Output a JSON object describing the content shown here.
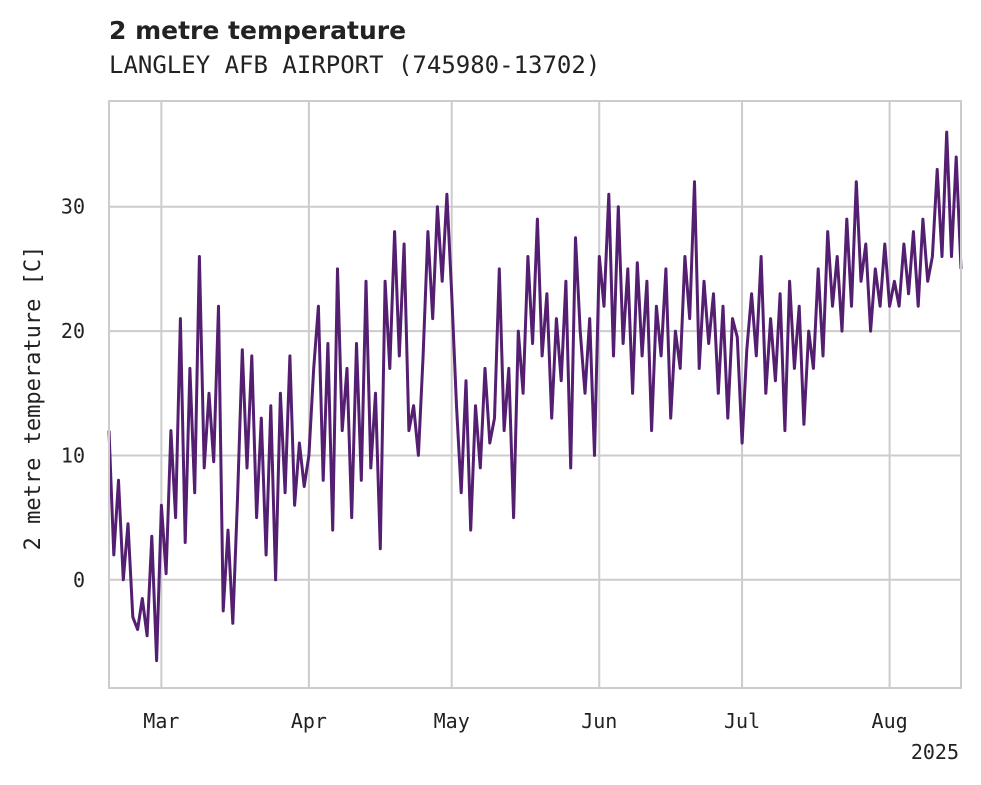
{
  "chart_data": {
    "type": "line",
    "title": "2 metre temperature",
    "subtitle": "LANGLEY AFB AIRPORT (745980-13702)",
    "xlabel": "",
    "ylabel": "2 metre temperature [C]",
    "year_label": "2025",
    "x_range": [
      "2025-02-18",
      "2025-08-16"
    ],
    "ylim": [
      -8.7,
      38.5
    ],
    "yticks": [
      0,
      10,
      20,
      30
    ],
    "xticks": [
      {
        "date": "2025-03-01",
        "label": "Mar"
      },
      {
        "date": "2025-04-01",
        "label": "Apr"
      },
      {
        "date": "2025-05-01",
        "label": "May"
      },
      {
        "date": "2025-06-01",
        "label": "Jun"
      },
      {
        "date": "2025-07-01",
        "label": "Jul"
      },
      {
        "date": "2025-08-01",
        "label": "Aug"
      }
    ],
    "grid": true,
    "series": [
      {
        "color": "#541f71",
        "points": [
          [
            "2025-02-18",
            12.0
          ],
          [
            "2025-02-19",
            2.0
          ],
          [
            "2025-02-20",
            8.0
          ],
          [
            "2025-02-21",
            0.0
          ],
          [
            "2025-02-22",
            4.5
          ],
          [
            "2025-02-23",
            -3.0
          ],
          [
            "2025-02-24",
            -4.0
          ],
          [
            "2025-02-25",
            -1.5
          ],
          [
            "2025-02-26",
            -4.5
          ],
          [
            "2025-02-27",
            3.5
          ],
          [
            "2025-02-28",
            -6.5
          ],
          [
            "2025-03-01",
            6.0
          ],
          [
            "2025-03-02",
            0.5
          ],
          [
            "2025-03-03",
            12.0
          ],
          [
            "2025-03-04",
            5.0
          ],
          [
            "2025-03-05",
            21.0
          ],
          [
            "2025-03-06",
            3.0
          ],
          [
            "2025-03-07",
            17.0
          ],
          [
            "2025-03-08",
            7.0
          ],
          [
            "2025-03-09",
            26.0
          ],
          [
            "2025-03-10",
            9.0
          ],
          [
            "2025-03-11",
            15.0
          ],
          [
            "2025-03-12",
            9.5
          ],
          [
            "2025-03-13",
            22.0
          ],
          [
            "2025-03-14",
            -2.5
          ],
          [
            "2025-03-15",
            4.0
          ],
          [
            "2025-03-16",
            -3.5
          ],
          [
            "2025-03-17",
            6.5
          ],
          [
            "2025-03-18",
            18.5
          ],
          [
            "2025-03-19",
            9.0
          ],
          [
            "2025-03-20",
            18.0
          ],
          [
            "2025-03-21",
            5.0
          ],
          [
            "2025-03-22",
            13.0
          ],
          [
            "2025-03-23",
            2.0
          ],
          [
            "2025-03-24",
            14.0
          ],
          [
            "2025-03-25",
            0.0
          ],
          [
            "2025-03-26",
            15.0
          ],
          [
            "2025-03-27",
            7.0
          ],
          [
            "2025-03-28",
            18.0
          ],
          [
            "2025-03-29",
            6.0
          ],
          [
            "2025-03-30",
            11.0
          ],
          [
            "2025-03-31",
            7.5
          ],
          [
            "2025-04-01",
            10.0
          ],
          [
            "2025-04-02",
            17.0
          ],
          [
            "2025-04-03",
            22.0
          ],
          [
            "2025-04-04",
            8.0
          ],
          [
            "2025-04-05",
            19.0
          ],
          [
            "2025-04-06",
            4.0
          ],
          [
            "2025-04-07",
            25.0
          ],
          [
            "2025-04-08",
            12.0
          ],
          [
            "2025-04-09",
            17.0
          ],
          [
            "2025-04-10",
            5.0
          ],
          [
            "2025-04-11",
            19.0
          ],
          [
            "2025-04-12",
            8.0
          ],
          [
            "2025-04-13",
            24.0
          ],
          [
            "2025-04-14",
            9.0
          ],
          [
            "2025-04-15",
            15.0
          ],
          [
            "2025-04-16",
            2.5
          ],
          [
            "2025-04-17",
            24.0
          ],
          [
            "2025-04-18",
            17.0
          ],
          [
            "2025-04-19",
            28.0
          ],
          [
            "2025-04-20",
            18.0
          ],
          [
            "2025-04-21",
            27.0
          ],
          [
            "2025-04-22",
            12.0
          ],
          [
            "2025-04-23",
            14.0
          ],
          [
            "2025-04-24",
            10.0
          ],
          [
            "2025-04-25",
            18.0
          ],
          [
            "2025-04-26",
            28.0
          ],
          [
            "2025-04-27",
            21.0
          ],
          [
            "2025-04-28",
            30.0
          ],
          [
            "2025-04-29",
            24.0
          ],
          [
            "2025-04-30",
            31.0
          ],
          [
            "2025-05-01",
            23.0
          ],
          [
            "2025-05-02",
            14.0
          ],
          [
            "2025-05-03",
            7.0
          ],
          [
            "2025-05-04",
            16.0
          ],
          [
            "2025-05-05",
            4.0
          ],
          [
            "2025-05-06",
            14.0
          ],
          [
            "2025-05-07",
            9.0
          ],
          [
            "2025-05-08",
            17.0
          ],
          [
            "2025-05-09",
            11.0
          ],
          [
            "2025-05-10",
            13.0
          ],
          [
            "2025-05-11",
            25.0
          ],
          [
            "2025-05-12",
            12.0
          ],
          [
            "2025-05-13",
            17.0
          ],
          [
            "2025-05-14",
            5.0
          ],
          [
            "2025-05-15",
            20.0
          ],
          [
            "2025-05-16",
            15.0
          ],
          [
            "2025-05-17",
            26.0
          ],
          [
            "2025-05-18",
            19.0
          ],
          [
            "2025-05-19",
            29.0
          ],
          [
            "2025-05-20",
            18.0
          ],
          [
            "2025-05-21",
            23.0
          ],
          [
            "2025-05-22",
            13.0
          ],
          [
            "2025-05-23",
            21.0
          ],
          [
            "2025-05-24",
            16.0
          ],
          [
            "2025-05-25",
            24.0
          ],
          [
            "2025-05-26",
            9.0
          ],
          [
            "2025-05-27",
            27.5
          ],
          [
            "2025-05-28",
            20.0
          ],
          [
            "2025-05-29",
            15.0
          ],
          [
            "2025-05-30",
            21.0
          ],
          [
            "2025-05-31",
            10.0
          ],
          [
            "2025-06-01",
            26.0
          ],
          [
            "2025-06-02",
            22.0
          ],
          [
            "2025-06-03",
            31.0
          ],
          [
            "2025-06-04",
            18.0
          ],
          [
            "2025-06-05",
            30.0
          ],
          [
            "2025-06-06",
            19.0
          ],
          [
            "2025-06-07",
            25.0
          ],
          [
            "2025-06-08",
            15.0
          ],
          [
            "2025-06-09",
            25.5
          ],
          [
            "2025-06-10",
            18.0
          ],
          [
            "2025-06-11",
            24.0
          ],
          [
            "2025-06-12",
            12.0
          ],
          [
            "2025-06-13",
            22.0
          ],
          [
            "2025-06-14",
            18.0
          ],
          [
            "2025-06-15",
            25.0
          ],
          [
            "2025-06-16",
            13.0
          ],
          [
            "2025-06-17",
            20.0
          ],
          [
            "2025-06-18",
            17.0
          ],
          [
            "2025-06-19",
            26.0
          ],
          [
            "2025-06-20",
            21.0
          ],
          [
            "2025-06-21",
            32.0
          ],
          [
            "2025-06-22",
            17.0
          ],
          [
            "2025-06-23",
            24.0
          ],
          [
            "2025-06-24",
            19.0
          ],
          [
            "2025-06-25",
            23.0
          ],
          [
            "2025-06-26",
            15.0
          ],
          [
            "2025-06-27",
            22.0
          ],
          [
            "2025-06-28",
            13.0
          ],
          [
            "2025-06-29",
            21.0
          ],
          [
            "2025-06-30",
            19.5
          ],
          [
            "2025-07-01",
            11.0
          ],
          [
            "2025-07-02",
            18.5
          ],
          [
            "2025-07-03",
            23.0
          ],
          [
            "2025-07-04",
            18.0
          ],
          [
            "2025-07-05",
            26.0
          ],
          [
            "2025-07-06",
            15.0
          ],
          [
            "2025-07-07",
            21.0
          ],
          [
            "2025-07-08",
            16.0
          ],
          [
            "2025-07-09",
            23.0
          ],
          [
            "2025-07-10",
            12.0
          ],
          [
            "2025-07-11",
            24.0
          ],
          [
            "2025-07-12",
            17.0
          ],
          [
            "2025-07-13",
            22.0
          ],
          [
            "2025-07-14",
            12.5
          ],
          [
            "2025-07-15",
            20.0
          ],
          [
            "2025-07-16",
            17.0
          ],
          [
            "2025-07-17",
            25.0
          ],
          [
            "2025-07-18",
            18.0
          ],
          [
            "2025-07-19",
            28.0
          ],
          [
            "2025-07-20",
            22.0
          ],
          [
            "2025-07-21",
            26.0
          ],
          [
            "2025-07-22",
            20.0
          ],
          [
            "2025-07-23",
            29.0
          ],
          [
            "2025-07-24",
            22.0
          ],
          [
            "2025-07-25",
            32.0
          ],
          [
            "2025-07-26",
            24.0
          ],
          [
            "2025-07-27",
            27.0
          ],
          [
            "2025-07-28",
            20.0
          ],
          [
            "2025-07-29",
            25.0
          ],
          [
            "2025-07-30",
            22.0
          ],
          [
            "2025-07-31",
            27.0
          ],
          [
            "2025-08-01",
            22.0
          ],
          [
            "2025-08-02",
            24.0
          ],
          [
            "2025-08-03",
            22.0
          ],
          [
            "2025-08-04",
            27.0
          ],
          [
            "2025-08-05",
            23.0
          ],
          [
            "2025-08-06",
            28.0
          ],
          [
            "2025-08-07",
            22.0
          ],
          [
            "2025-08-08",
            29.0
          ],
          [
            "2025-08-09",
            24.0
          ],
          [
            "2025-08-10",
            26.0
          ],
          [
            "2025-08-11",
            33.0
          ],
          [
            "2025-08-12",
            26.0
          ],
          [
            "2025-08-13",
            36.0
          ],
          [
            "2025-08-14",
            26.0
          ],
          [
            "2025-08-15",
            34.0
          ],
          [
            "2025-08-16",
            25.0
          ]
        ]
      }
    ]
  }
}
